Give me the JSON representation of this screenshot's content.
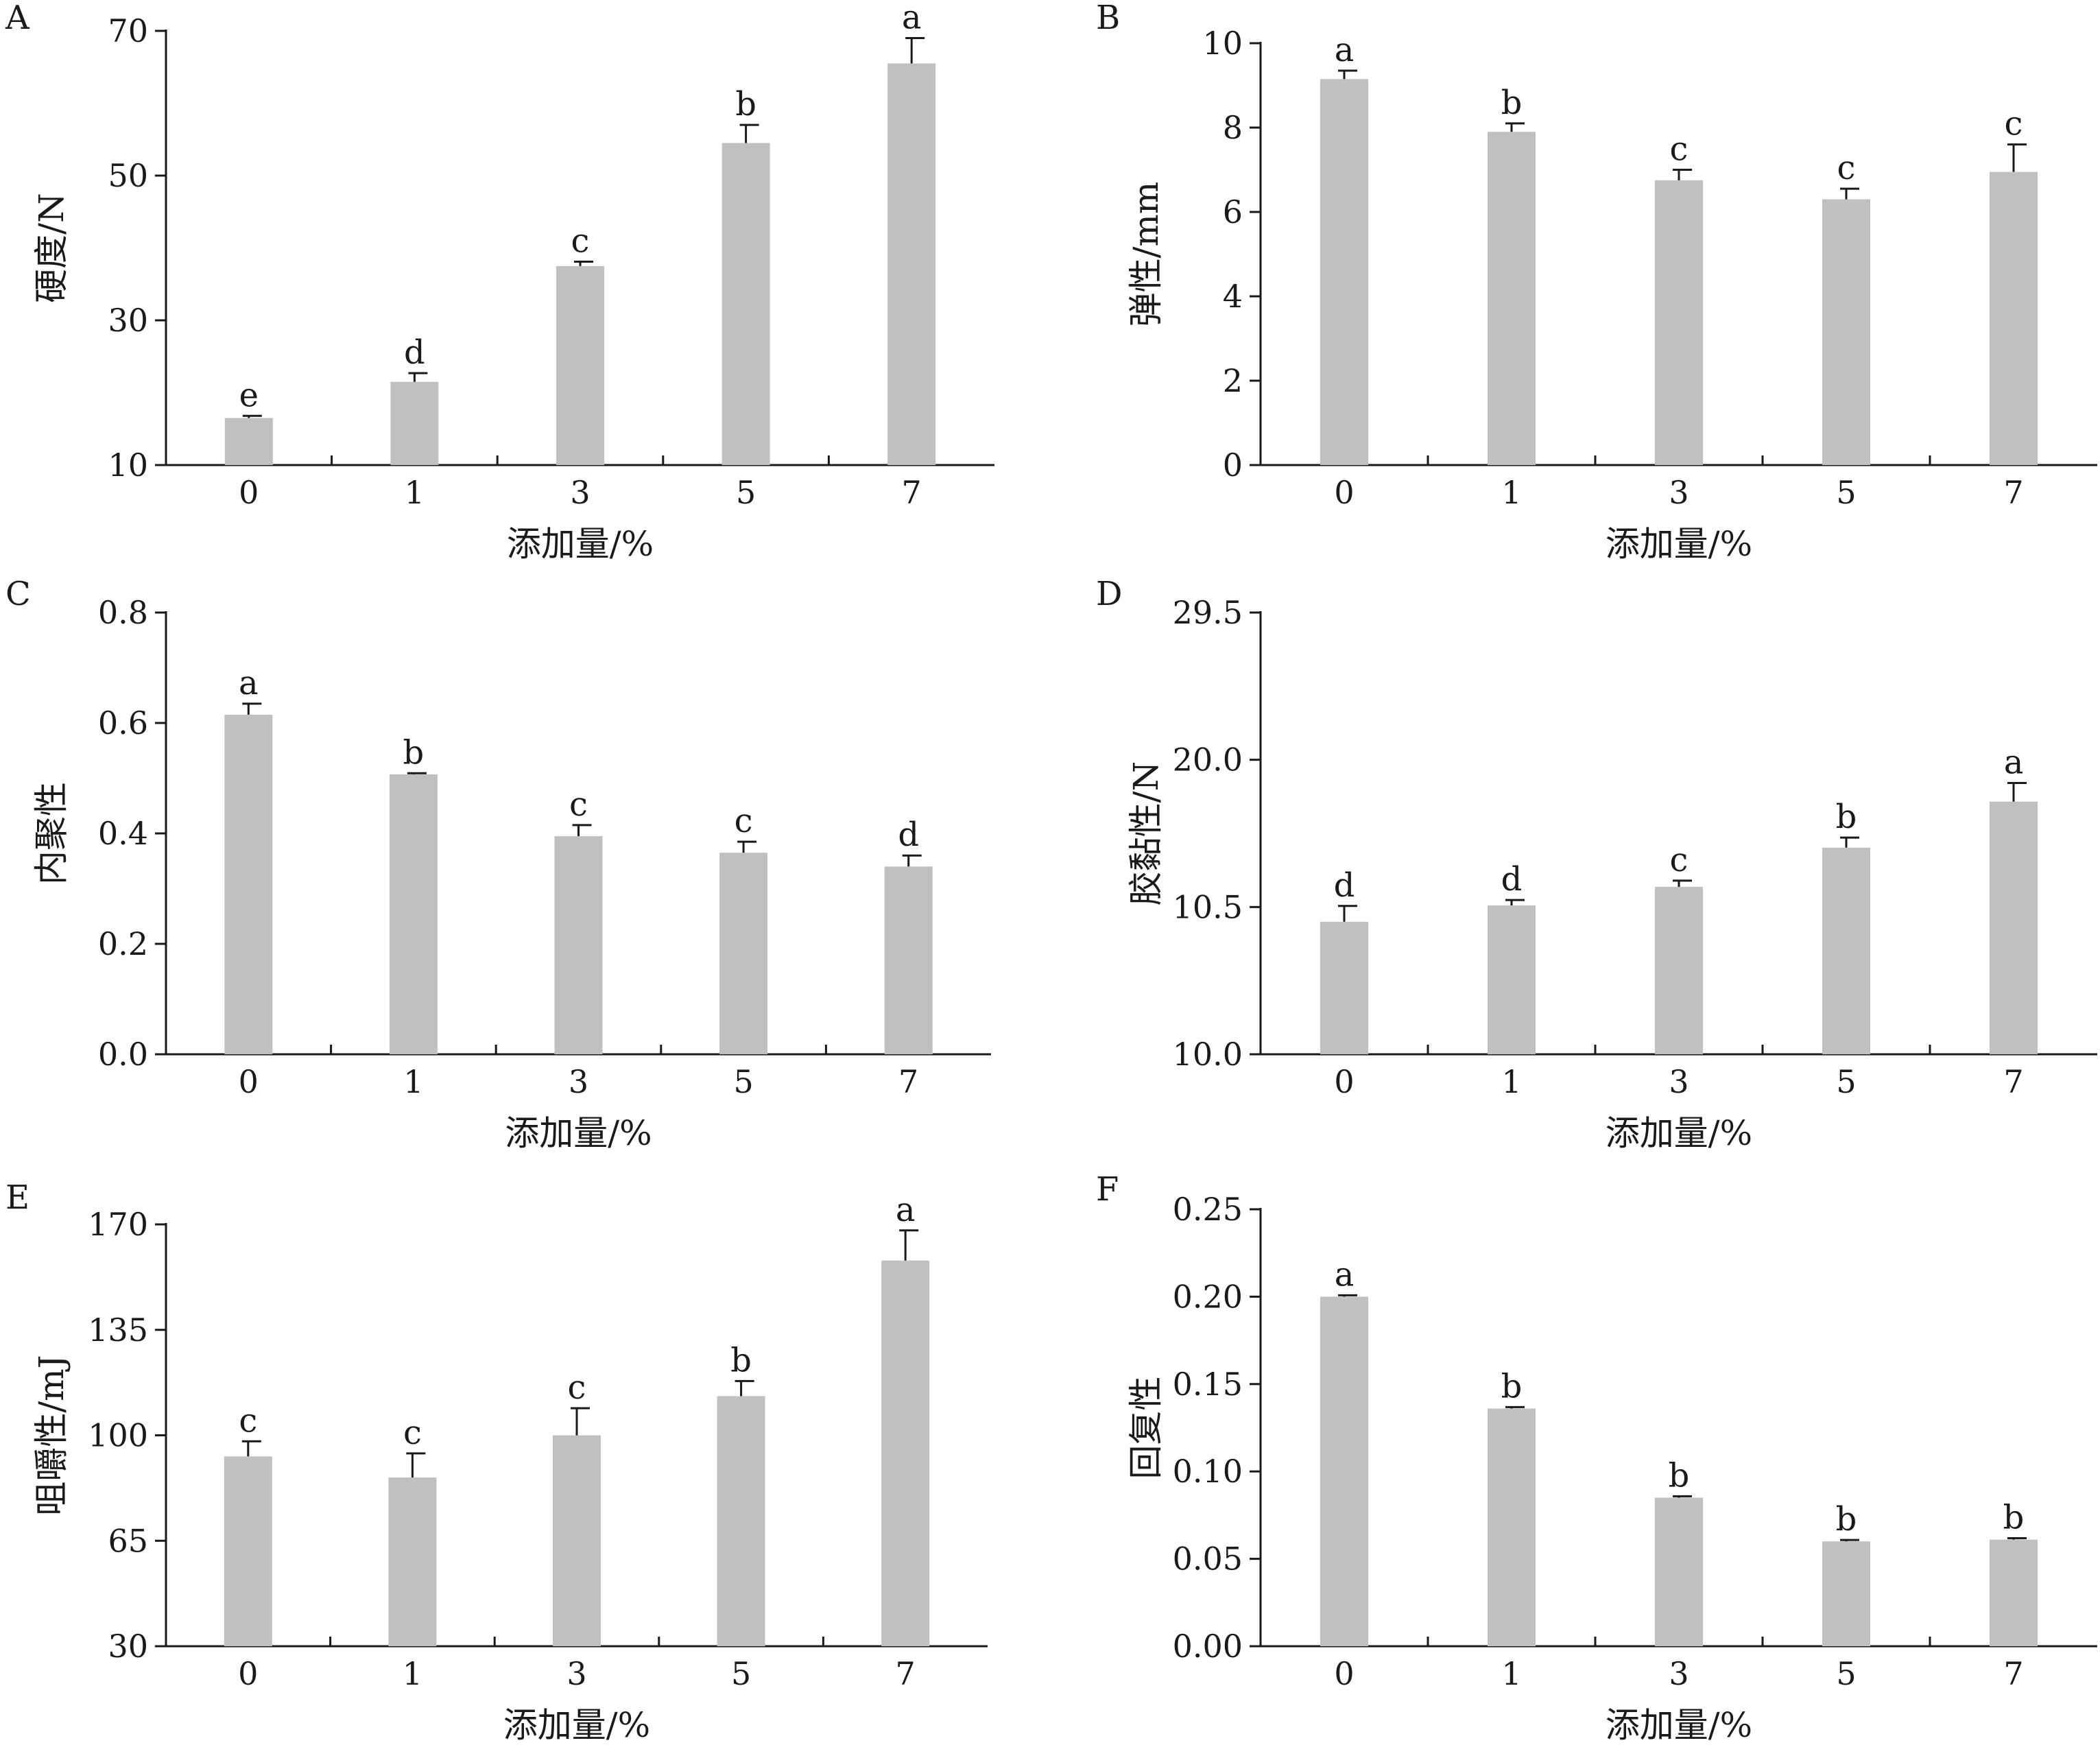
{
  "chart_data": [
    {
      "type": "bar",
      "panel": "A",
      "categories": [
        "0",
        "1",
        "3",
        "5",
        "7"
      ],
      "values": [
        16.5,
        21.5,
        37.5,
        54.5,
        65.5
      ],
      "errors": [
        0.3,
        1.2,
        0.6,
        2.5,
        3.5
      ],
      "letters": [
        "e",
        "d",
        "c",
        "b",
        "a"
      ],
      "ylabel": "硬度/N",
      "xlabel": "添加量/%",
      "ylim": [
        10,
        70
      ],
      "yticks": [
        "10",
        "30",
        "50",
        "70"
      ]
    },
    {
      "type": "bar",
      "panel": "B",
      "categories": [
        "0",
        "1",
        "3",
        "5",
        "7"
      ],
      "values": [
        9.15,
        7.9,
        6.75,
        6.3,
        6.95
      ],
      "errors": [
        0.2,
        0.2,
        0.25,
        0.25,
        0.65
      ],
      "letters": [
        "a",
        "b",
        "c",
        "c",
        "c"
      ],
      "ylabel": "弹性/mm",
      "xlabel": "添加量/%",
      "ylim": [
        0,
        10
      ],
      "yticks": [
        "0",
        "2",
        "4",
        "6",
        "8",
        "10"
      ]
    },
    {
      "type": "bar",
      "panel": "C",
      "categories": [
        "0",
        "1",
        "3",
        "5",
        "7"
      ],
      "values": [
        0.615,
        0.507,
        0.395,
        0.365,
        0.34
      ],
      "errors": [
        0.02,
        0.002,
        0.02,
        0.02,
        0.02
      ],
      "letters": [
        "a",
        "b",
        "c",
        "c",
        "d"
      ],
      "ylabel": "内聚性",
      "xlabel": "添加量/%",
      "ylim": [
        0.0,
        0.8
      ],
      "yticks": [
        "0.0",
        "0.2",
        "0.4",
        "0.6",
        "0.8"
      ]
    },
    {
      "type": "bar",
      "panel": "D",
      "categories": [
        "0",
        "1",
        "3",
        "5",
        "7"
      ],
      "values": [
        10.45,
        10.6,
        11.8,
        14.33,
        17.3
      ],
      "errors": [
        0.12,
        0.35,
        0.4,
        0.65,
        1.2
      ],
      "letters": [
        "d",
        "d",
        "c",
        "b",
        "a"
      ],
      "ylabel": "胶黏性/N",
      "xlabel": "添加量/%",
      "ylim": [
        10.0,
        29.5
      ],
      "yticks": [
        "10.0",
        "10.5",
        "20.0",
        "29.5"
      ]
    },
    {
      "type": "bar",
      "panel": "E",
      "categories": [
        "0",
        "1",
        "3",
        "5",
        "7"
      ],
      "values": [
        93,
        86,
        100,
        113,
        158
      ],
      "errors": [
        5,
        8,
        9,
        5,
        10
      ],
      "letters": [
        "c",
        "c",
        "c",
        "b",
        "a"
      ],
      "ylabel": "咀嚼性/mJ",
      "xlabel": "添加量/%",
      "ylim": [
        30,
        170
      ],
      "yticks": [
        "30",
        "65",
        "100",
        "135",
        "170"
      ]
    },
    {
      "type": "bar",
      "panel": "F",
      "categories": [
        "0",
        "1",
        "3",
        "5",
        "7"
      ],
      "values": [
        0.2,
        0.136,
        0.085,
        0.06,
        0.061
      ],
      "errors": [
        0.0008,
        0.0008,
        0.0008,
        0.0008,
        0.0008
      ],
      "letters": [
        "a",
        "b",
        "b",
        "b",
        "b"
      ],
      "ylabel": "回复性",
      "xlabel": "添加量/%",
      "ylim": [
        0.0,
        0.25
      ],
      "yticks": [
        "0.00",
        "0.05",
        "0.10",
        "0.15",
        "0.20",
        "0.25"
      ]
    }
  ]
}
